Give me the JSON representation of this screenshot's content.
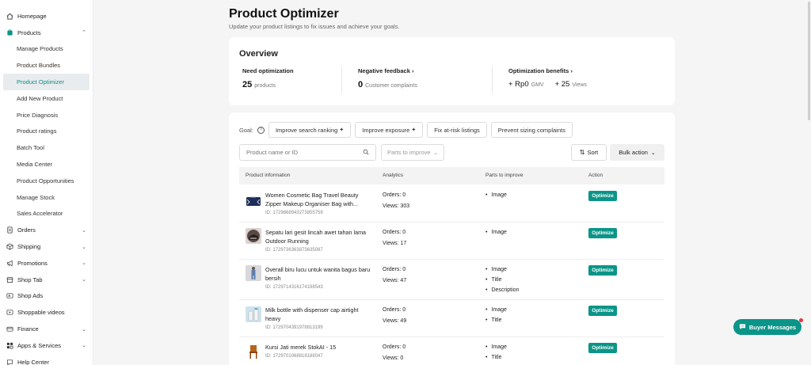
{
  "sidebar": {
    "items": [
      {
        "label": "Homepage",
        "icon": "home-icon",
        "type": "top"
      },
      {
        "label": "Products",
        "icon": "products-icon",
        "type": "top",
        "expanded": true
      },
      {
        "label": "Manage Products",
        "type": "sub"
      },
      {
        "label": "Product Bundles",
        "type": "sub"
      },
      {
        "label": "Product Optimizer",
        "type": "sub",
        "active": true
      },
      {
        "label": "Add New Product",
        "type": "sub"
      },
      {
        "label": "Price Diagnosis",
        "type": "sub"
      },
      {
        "label": "Product ratings",
        "type": "sub"
      },
      {
        "label": "Batch Tool",
        "type": "sub"
      },
      {
        "label": "Media Center",
        "type": "sub"
      },
      {
        "label": "Product Opportunities",
        "type": "sub"
      },
      {
        "label": "Manage Stock",
        "type": "sub"
      },
      {
        "label": "Sales Accelerator",
        "type": "sub"
      },
      {
        "label": "Orders",
        "icon": "orders-icon",
        "type": "top",
        "chevron": true
      },
      {
        "label": "Shipping",
        "icon": "shipping-icon",
        "type": "top",
        "chevron": true
      },
      {
        "label": "Promotions",
        "icon": "promotions-icon",
        "type": "top",
        "chevron": true
      },
      {
        "label": "Shop Tab",
        "icon": "shop-tab-icon",
        "type": "top",
        "chevron": true
      },
      {
        "label": "Shop Ads",
        "icon": "shop-ads-icon",
        "type": "top"
      },
      {
        "label": "Shoppable videos",
        "icon": "video-icon",
        "type": "top"
      },
      {
        "label": "Finance",
        "icon": "finance-icon",
        "type": "top",
        "chevron": true
      },
      {
        "label": "Apps & Services",
        "icon": "apps-icon",
        "type": "top",
        "chevron": true
      },
      {
        "label": "Help Center",
        "icon": "help-icon",
        "type": "top"
      }
    ]
  },
  "header": {
    "title": "Product Optimizer",
    "subtitle": "Update your product listings to fix issues and achieve your goals."
  },
  "overview": {
    "title": "Overview",
    "need_optimization": {
      "label": "Need optimization",
      "value": "25",
      "unit": "products"
    },
    "negative_feedback": {
      "label": "Negative feedback",
      "value": "0",
      "unit": "Customer complaints"
    },
    "benefits": {
      "label": "Optimization benefits",
      "gmv_value": "+ Rp0",
      "gmv_unit": "GMV",
      "views_value": "+ 25",
      "views_unit": "Views"
    }
  },
  "filters": {
    "goal_label": "Goal:",
    "goals": [
      "Improve search ranking",
      "Improve exposure",
      "Fix at-risk listings",
      "Prevent sizing complaints"
    ],
    "search_placeholder": "Product name or ID",
    "parts_placeholder": "Parts to improve",
    "sort_label": "Sort",
    "bulk_label": "Bulk action"
  },
  "table": {
    "headers": [
      "Product information",
      "Analytics",
      "Parts to improve",
      "Action"
    ],
    "action_label": "Optimize",
    "rows": [
      {
        "name": "Women Cosmetic Bag Travel Beauty Zipper Makeup Organiser Bag with...",
        "id": "ID: 1729868943273855759",
        "orders": "Orders: 0",
        "views": "Views: 303",
        "parts": [
          "Image"
        ]
      },
      {
        "name": "Sepatu lari gesit lincah awet tahan lama Outdoor Running",
        "id": "ID: 1729736363873635087",
        "orders": "Orders: 0",
        "views": "Views: 17",
        "parts": [
          "Image"
        ]
      },
      {
        "name": "Overall biru lucu untuk wanita bagus baru bersih",
        "id": "ID: 1729714316174198543",
        "orders": "Orders: 0",
        "views": "Views: 47",
        "parts": [
          "Image",
          "Title",
          "Description"
        ]
      },
      {
        "name": "Milk bottle with dispenser cap airtight heavy",
        "id": "ID: 1729704391978813199",
        "orders": "Orders: 0",
        "views": "Views: 49",
        "parts": [
          "Image",
          "Title"
        ]
      },
      {
        "name": "Kursi Jati merek StokAI - 15",
        "id": "ID: 1729701068818188047",
        "orders": "Orders: 0",
        "views": "Views: 0",
        "parts": [
          "Image",
          "Title"
        ]
      }
    ]
  },
  "buyer_messages": {
    "label": "Buyer Messages"
  },
  "colors": {
    "accent": "#0a9588",
    "notification": "#ee3344"
  }
}
